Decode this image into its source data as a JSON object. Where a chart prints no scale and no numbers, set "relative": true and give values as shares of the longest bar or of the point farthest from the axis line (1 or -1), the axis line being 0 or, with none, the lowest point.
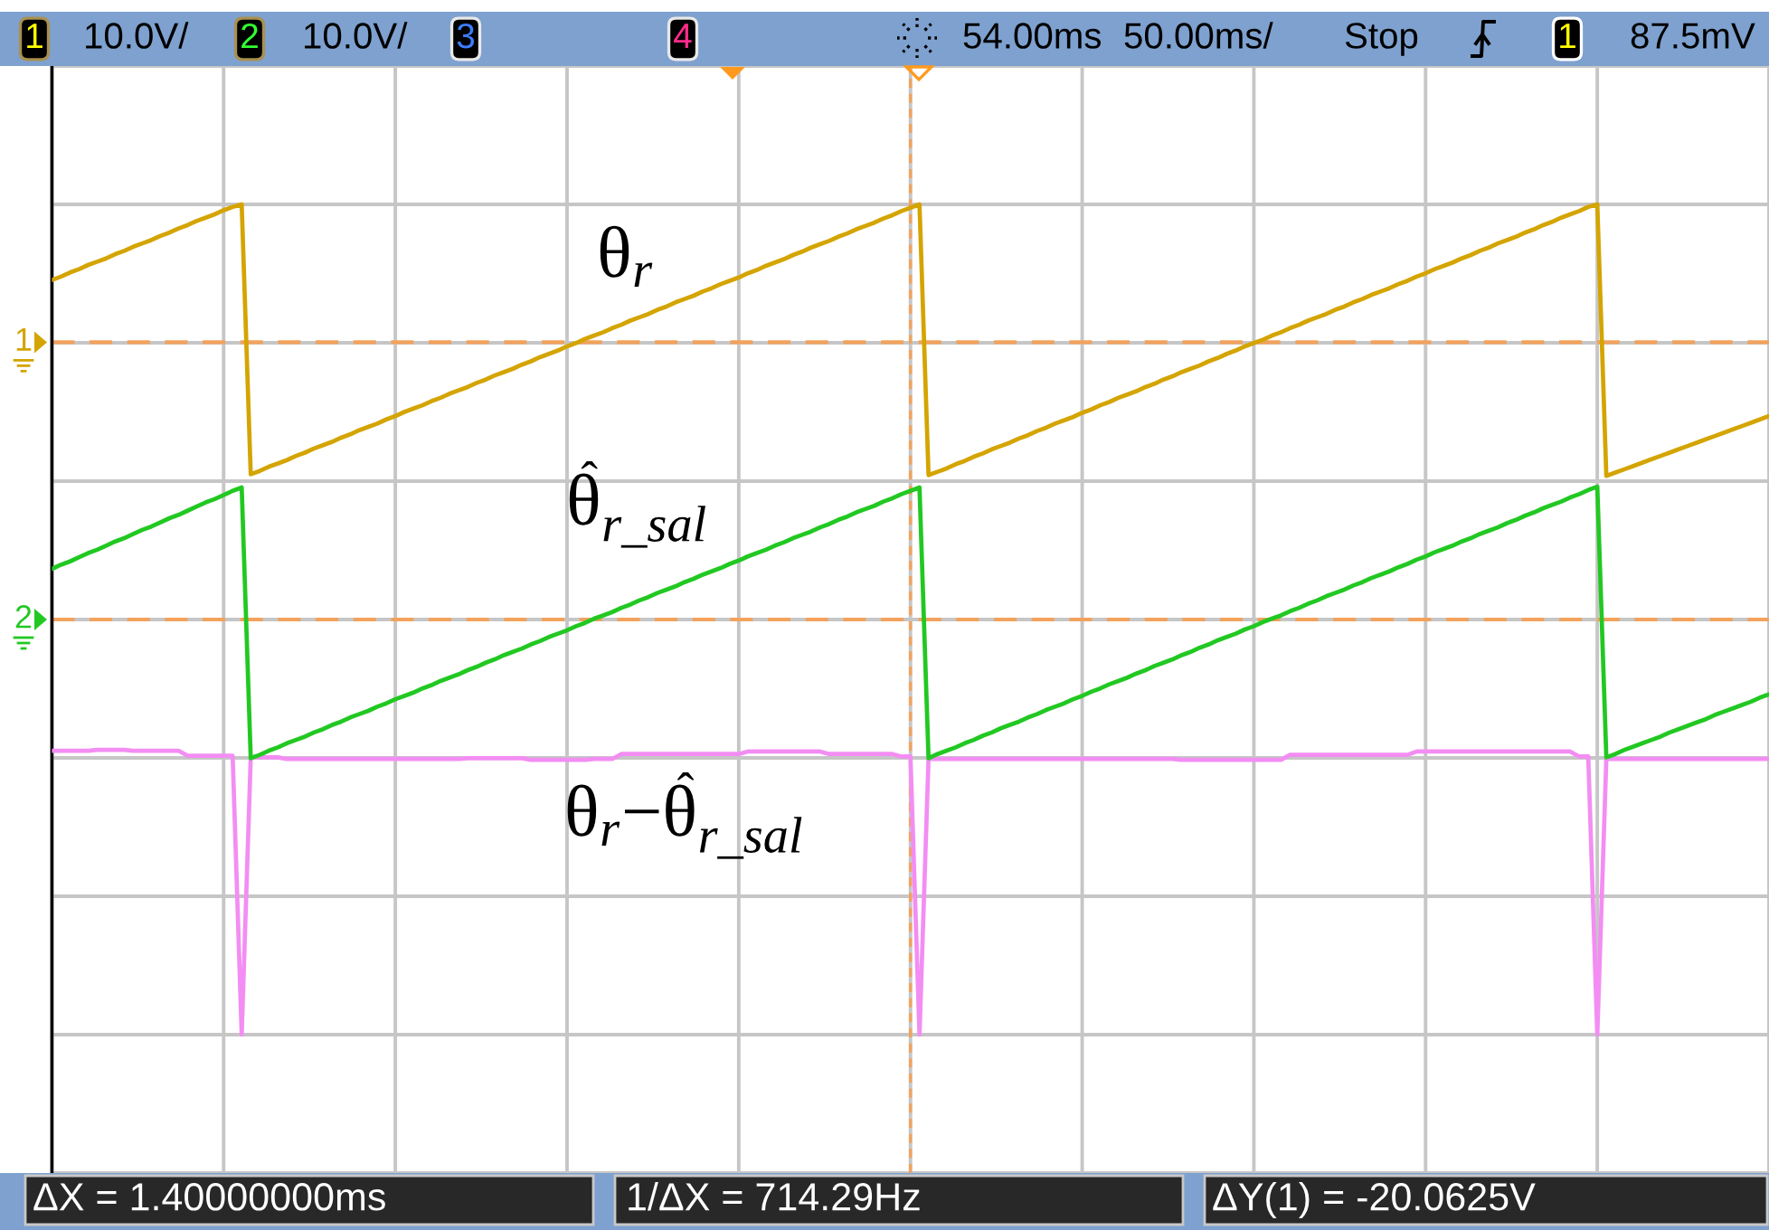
{
  "chart_data": {
    "type": "line",
    "relative": true,
    "categories": [
      null,
      null,
      null,
      null,
      null,
      null,
      null,
      null,
      null,
      null,
      null,
      null,
      null,
      null,
      null,
      null,
      null,
      null,
      null,
      null,
      null,
      null,
      null,
      null,
      null,
      null,
      null,
      null,
      null,
      null,
      null,
      null,
      null,
      null,
      null,
      null,
      null,
      null,
      null,
      null,
      null,
      null,
      null,
      null,
      null,
      null,
      null,
      null,
      null,
      null,
      null,
      null,
      null,
      null,
      null,
      null,
      null,
      null,
      null,
      null,
      null,
      null,
      null,
      null,
      null,
      null,
      null,
      null,
      null,
      null,
      null,
      null,
      null,
      null,
      null,
      null,
      null,
      null,
      null,
      null,
      null,
      null,
      null,
      null,
      null,
      null,
      null,
      null,
      null,
      null,
      null,
      null,
      null,
      null,
      null,
      null,
      null,
      null,
      null,
      null,
      null,
      null,
      null,
      null,
      null,
      null,
      null,
      null,
      null,
      null,
      null,
      null,
      null,
      null,
      null,
      null,
      null,
      null,
      null,
      null,
      null,
      null,
      null,
      null,
      null,
      null,
      null,
      null,
      null,
      null,
      null,
      null,
      null,
      null,
      null,
      null,
      null,
      null,
      null,
      null,
      null,
      null,
      null,
      null,
      null,
      null,
      null,
      null,
      null,
      null,
      null,
      null,
      null,
      null,
      null,
      null,
      null,
      null,
      null,
      null,
      null,
      null,
      null,
      null,
      null,
      null,
      null,
      null,
      null,
      null,
      null,
      null,
      null,
      null,
      null,
      null,
      null,
      null,
      null,
      null,
      null,
      null,
      null,
      null,
      null,
      null,
      null,
      null,
      null,
      null,
      null
    ],
    "series": [
      {
        "name": "θ$_{r}$",
        "color": "#d4a400",
        "values": [
          0.909,
          0.913,
          0.918,
          0.922,
          0.927,
          0.931,
          0.935,
          0.94,
          0.944,
          0.949,
          0.953,
          0.957,
          0.962,
          0.966,
          0.971,
          0.975,
          0.98,
          0.984,
          0.988,
          0.993,
          0.997,
          1.0,
          0.675,
          0.679,
          0.684,
          0.688,
          0.692,
          0.697,
          0.701,
          0.706,
          0.71,
          0.714,
          0.719,
          0.723,
          0.728,
          0.732,
          0.736,
          0.741,
          0.745,
          0.75,
          0.754,
          0.758,
          0.763,
          0.767,
          0.772,
          0.776,
          0.78,
          0.785,
          0.789,
          0.794,
          0.798,
          0.802,
          0.807,
          0.811,
          0.816,
          0.82,
          0.824,
          0.829,
          0.833,
          0.838,
          0.842,
          0.846,
          0.851,
          0.855,
          0.86,
          0.864,
          0.868,
          0.873,
          0.877,
          0.882,
          0.886,
          0.89,
          0.895,
          0.899,
          0.904,
          0.908,
          0.912,
          0.917,
          0.921,
          0.926,
          0.93,
          0.934,
          0.939,
          0.943,
          0.948,
          0.952,
          0.956,
          0.961,
          0.965,
          0.97,
          0.974,
          0.978,
          0.983,
          0.987,
          0.992,
          0.996,
          1.0,
          0.674,
          0.678,
          0.682,
          0.687,
          0.691,
          0.696,
          0.7,
          0.705,
          0.709,
          0.713,
          0.718,
          0.722,
          0.727,
          0.731,
          0.736,
          0.74,
          0.744,
          0.749,
          0.753,
          0.758,
          0.762,
          0.767,
          0.771,
          0.775,
          0.78,
          0.784,
          0.789,
          0.793,
          0.798,
          0.802,
          0.806,
          0.811,
          0.815,
          0.82,
          0.824,
          0.829,
          0.833,
          0.837,
          0.842,
          0.846,
          0.851,
          0.855,
          0.86,
          0.864,
          0.868,
          0.873,
          0.877,
          0.882,
          0.886,
          0.891,
          0.895,
          0.899,
          0.904,
          0.908,
          0.913,
          0.917,
          0.922,
          0.926,
          0.93,
          0.935,
          0.939,
          0.944,
          0.948,
          0.953,
          0.957,
          0.961,
          0.966,
          0.97,
          0.975,
          0.979,
          0.984,
          0.988,
          0.992,
          0.997,
          1.0,
          0.673,
          0.677,
          0.681,
          0.685,
          0.689,
          0.693,
          0.697,
          0.701,
          0.705,
          0.709,
          0.713,
          0.717,
          0.721,
          0.725,
          0.729,
          0.733,
          0.737,
          0.741,
          0.745
        ]
      },
      {
        "name": "θ̂$_{r_sal}$",
        "color": "#22c822",
        "values": [
          0.561,
          0.566,
          0.57,
          0.575,
          0.58,
          0.584,
          0.589,
          0.594,
          0.598,
          0.603,
          0.608,
          0.612,
          0.617,
          0.622,
          0.626,
          0.631,
          0.636,
          0.641,
          0.645,
          0.65,
          0.655,
          0.659,
          0.333,
          0.337,
          0.342,
          0.346,
          0.351,
          0.355,
          0.359,
          0.364,
          0.368,
          0.373,
          0.377,
          0.382,
          0.386,
          0.39,
          0.395,
          0.399,
          0.404,
          0.408,
          0.412,
          0.417,
          0.421,
          0.426,
          0.43,
          0.434,
          0.439,
          0.443,
          0.448,
          0.452,
          0.457,
          0.461,
          0.465,
          0.47,
          0.474,
          0.479,
          0.483,
          0.487,
          0.492,
          0.496,
          0.501,
          0.505,
          0.509,
          0.514,
          0.518,
          0.523,
          0.527,
          0.532,
          0.536,
          0.54,
          0.545,
          0.549,
          0.554,
          0.558,
          0.562,
          0.567,
          0.571,
          0.576,
          0.58,
          0.584,
          0.589,
          0.593,
          0.598,
          0.602,
          0.606,
          0.611,
          0.615,
          0.62,
          0.624,
          0.629,
          0.633,
          0.637,
          0.642,
          0.646,
          0.651,
          0.655,
          0.659,
          0.333,
          0.338,
          0.342,
          0.346,
          0.351,
          0.355,
          0.36,
          0.364,
          0.369,
          0.373,
          0.377,
          0.382,
          0.386,
          0.391,
          0.395,
          0.399,
          0.404,
          0.408,
          0.413,
          0.417,
          0.422,
          0.426,
          0.43,
          0.435,
          0.439,
          0.444,
          0.448,
          0.452,
          0.457,
          0.461,
          0.466,
          0.47,
          0.475,
          0.479,
          0.483,
          0.488,
          0.492,
          0.497,
          0.501,
          0.505,
          0.51,
          0.514,
          0.519,
          0.523,
          0.528,
          0.532,
          0.536,
          0.541,
          0.545,
          0.55,
          0.554,
          0.558,
          0.563,
          0.567,
          0.572,
          0.576,
          0.581,
          0.585,
          0.589,
          0.594,
          0.598,
          0.603,
          0.607,
          0.611,
          0.616,
          0.62,
          0.625,
          0.629,
          0.634,
          0.638,
          0.642,
          0.647,
          0.651,
          0.656,
          0.66,
          0.334,
          0.338,
          0.343,
          0.347,
          0.351,
          0.355,
          0.359,
          0.364,
          0.368,
          0.372,
          0.376,
          0.38,
          0.385,
          0.389,
          0.393,
          0.397,
          0.401,
          0.406,
          0.41
        ]
      },
      {
        "name": "θ$_{r}$−θ̂$_{r_sal}$",
        "color": "#f38df3",
        "values": [
          0.342,
          0.342,
          0.342,
          0.342,
          0.342,
          0.343,
          0.343,
          0.343,
          0.343,
          0.342,
          0.342,
          0.342,
          0.342,
          0.342,
          0.342,
          0.336,
          0.336,
          0.336,
          0.336,
          0.336,
          0.336,
          0,
          0.334,
          0.334,
          0.334,
          0.334,
          0.332,
          0.332,
          0.332,
          0.332,
          0.332,
          0.332,
          0.332,
          0.332,
          0.332,
          0.332,
          0.332,
          0.332,
          0.332,
          0.332,
          0.332,
          0.332,
          0.332,
          0.332,
          0.332,
          0.332,
          0.333,
          0.333,
          0.333,
          0.333,
          0.333,
          0.333,
          0.333,
          0.331,
          0.331,
          0.331,
          0.331,
          0.331,
          0.331,
          0.331,
          0.332,
          0.332,
          0.332,
          0.338,
          0.338,
          0.338,
          0.338,
          0.338,
          0.338,
          0.338,
          0.338,
          0.338,
          0.338,
          0.338,
          0.338,
          0.338,
          0.338,
          0.341,
          0.341,
          0.341,
          0.341,
          0.341,
          0.341,
          0.341,
          0.341,
          0.341,
          0.338,
          0.338,
          0.338,
          0.338,
          0.338,
          0.338,
          0.338,
          0.338,
          0.335,
          0.335,
          0,
          0.332,
          0.332,
          0.332,
          0.332,
          0.332,
          0.332,
          0.332,
          0.332,
          0.332,
          0.332,
          0.332,
          0.332,
          0.332,
          0.332,
          0.332,
          0.332,
          0.332,
          0.332,
          0.332,
          0.332,
          0.332,
          0.332,
          0.332,
          0.332,
          0.332,
          0.332,
          0.332,
          0.332,
          0.331,
          0.331,
          0.331,
          0.331,
          0.331,
          0.331,
          0.331,
          0.331,
          0.331,
          0.331,
          0.331,
          0.331,
          0.337,
          0.337,
          0.337,
          0.337,
          0.337,
          0.337,
          0.337,
          0.337,
          0.337,
          0.337,
          0.337,
          0.337,
          0.337,
          0.337,
          0.341,
          0.341,
          0.341,
          0.341,
          0.341,
          0.341,
          0.341,
          0.341,
          0.341,
          0.341,
          0.341,
          0.341,
          0.341,
          0.341,
          0.341,
          0.341,
          0.341,
          0.341,
          0.335,
          0.335,
          0,
          0.332,
          0.332,
          0.332,
          0.332,
          0.332,
          0.332,
          0.332,
          0.332,
          0.332,
          0.332,
          0.332,
          0.332,
          0.332,
          0.332,
          0.332,
          0.332,
          0.332,
          0.332,
          0.332
        ]
      }
    ],
    "ref_lines": [
      {
        "axis": "y",
        "value": 0.834,
        "color": "#f2a25c",
        "line_style": "dashed"
      },
      {
        "axis": "y",
        "value": 0.5,
        "color": "#f2a25c",
        "line_style": "dashed"
      }
    ],
    "annotations": [
      "1",
      "10.0V/",
      "2",
      "10.0V/",
      "3",
      "4",
      "54.00ms",
      "50.00ms/",
      "Stop",
      "1",
      "87.5mV",
      "ΔX = 1.40000000ms",
      "1/ΔX = 714.29Hz",
      "ΔY(1) = -20.0625V",
      "1",
      "2"
    ],
    "grid": true,
    "tick_labels": false,
    "line_style": "solid"
  }
}
